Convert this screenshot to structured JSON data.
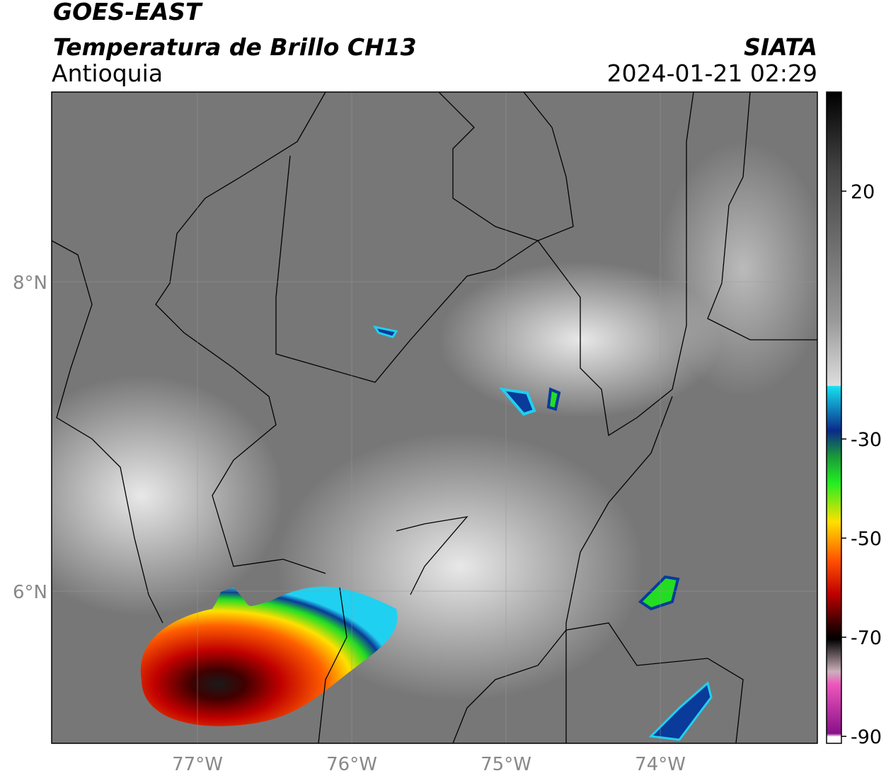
{
  "header": {
    "satellite": "GOES-EAST",
    "product": "Temperatura de Brillo CH13",
    "region": "Antioquia",
    "source": "SIATA",
    "datetime": "2024-01-21 02:29"
  },
  "map": {
    "xlim": [
      -77.945,
      -72.982
    ],
    "ylim": [
      5.016,
      9.227
    ],
    "lat_ticks": [
      {
        "value": 8,
        "label": "8°N"
      },
      {
        "value": 6,
        "label": "6°N"
      }
    ],
    "lon_ticks": [
      {
        "value": -77,
        "label": "77°W"
      },
      {
        "value": -76,
        "label": "76°W"
      },
      {
        "value": -75,
        "label": "75°W"
      },
      {
        "value": -74,
        "label": "74°W"
      }
    ]
  },
  "colorbar": {
    "lim": [
      -91.4,
      40
    ],
    "ticks": [
      20,
      -30,
      -50,
      -70,
      -90
    ]
  }
}
